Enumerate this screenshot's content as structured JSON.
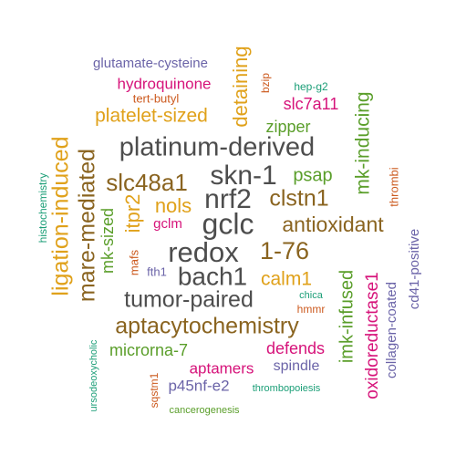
{
  "chart_data": {
    "type": "wordcloud",
    "palette": {
      "gray": "#4d4d4d",
      "brown": "#8a6420",
      "gold": "#e0a11a",
      "green": "#5a9e2a",
      "magenta": "#d6137a",
      "orange": "#cc5a1f",
      "purple": "#6b64a8",
      "teal": "#1b9e77"
    },
    "words": [
      {
        "text": "glutamate-cysteine",
        "color": "purple"
      },
      {
        "text": "hydroquinone",
        "color": "magenta"
      },
      {
        "text": "tert-butyl",
        "color": "orange"
      },
      {
        "text": "detaining",
        "color": "gold"
      },
      {
        "text": "bzip",
        "color": "orange"
      },
      {
        "text": "hep-g2",
        "color": "teal"
      },
      {
        "text": "slc7a11",
        "color": "magenta"
      },
      {
        "text": "platelet-sized",
        "color": "gold"
      },
      {
        "text": "zipper",
        "color": "green"
      },
      {
        "text": "mk-inducing",
        "color": "green"
      },
      {
        "text": "ligation-induced",
        "color": "gold"
      },
      {
        "text": "mare-mediated",
        "color": "brown"
      },
      {
        "text": "platinum-derived",
        "color": "gray"
      },
      {
        "text": "histochemistry",
        "color": "teal"
      },
      {
        "text": "skn-1",
        "color": "gray"
      },
      {
        "text": "psap",
        "color": "green"
      },
      {
        "text": "slc48a1",
        "color": "brown"
      },
      {
        "text": "nrf2",
        "color": "gray"
      },
      {
        "text": "clstn1",
        "color": "brown"
      },
      {
        "text": "thrombi",
        "color": "orange"
      },
      {
        "text": "itpr2",
        "color": "gold"
      },
      {
        "text": "nols",
        "color": "gold"
      },
      {
        "text": "mk-sized",
        "color": "green"
      },
      {
        "text": "gclm",
        "color": "magenta"
      },
      {
        "text": "gclc",
        "color": "gray"
      },
      {
        "text": "antioxidant",
        "color": "brown"
      },
      {
        "text": "cd41-positive",
        "color": "purple"
      },
      {
        "text": "redox",
        "color": "gray"
      },
      {
        "text": "1-76",
        "color": "brown"
      },
      {
        "text": "mafs",
        "color": "orange"
      },
      {
        "text": "bach1",
        "color": "gray"
      },
      {
        "text": "fth1",
        "color": "purple"
      },
      {
        "text": "oxidoreductase1",
        "color": "magenta"
      },
      {
        "text": "calm1",
        "color": "gold"
      },
      {
        "text": "imk-infused",
        "color": "green"
      },
      {
        "text": "collagen-coated",
        "color": "purple"
      },
      {
        "text": "tumor-paired",
        "color": "gray"
      },
      {
        "text": "chica",
        "color": "teal"
      },
      {
        "text": "hmmr",
        "color": "orange"
      },
      {
        "text": "aptacytochemistry",
        "color": "brown"
      },
      {
        "text": "ursodeoxycholic",
        "color": "teal"
      },
      {
        "text": "microrna-7",
        "color": "green"
      },
      {
        "text": "defends",
        "color": "magenta"
      },
      {
        "text": "sqstm1",
        "color": "orange"
      },
      {
        "text": "aptamers",
        "color": "magenta"
      },
      {
        "text": "spindle",
        "color": "purple"
      },
      {
        "text": "p45nf-e2",
        "color": "purple"
      },
      {
        "text": "thrombopoiesis",
        "color": "teal"
      },
      {
        "text": "cancerogenesis",
        "color": "green"
      }
    ]
  }
}
